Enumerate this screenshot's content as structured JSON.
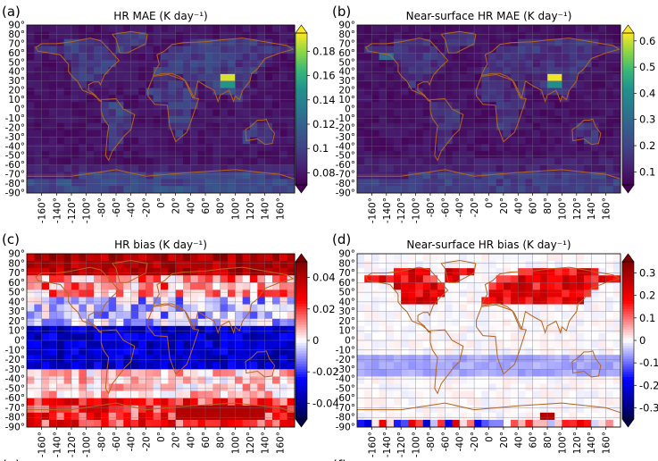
{
  "chart_data": [
    {
      "type": "heatmap",
      "panel_label": "(a)",
      "title": "HR MAE (K day⁻¹)",
      "colormap": "viridis",
      "colorbar_range": [
        0.07,
        0.195
      ],
      "colorbar_ticks": [
        0.08,
        0.1,
        0.12,
        0.14,
        0.16,
        0.18
      ],
      "colorbar_tick_labels": [
        "0.08",
        "0.1",
        "0.12",
        "0.14",
        "0.16",
        "0.18"
      ],
      "x_tick_labels": [
        "-160°",
        "-140°",
        "-120°",
        "-100°",
        "-80°",
        "-60°",
        "-40°",
        "-20°",
        "0°",
        "20°",
        "40°",
        "60°",
        "80°",
        "100°",
        "120°",
        "140°",
        "160°"
      ],
      "y_tick_labels": [
        "90°",
        "80°",
        "70°",
        "60°",
        "50°",
        "40°",
        "30°",
        "20°",
        "10°",
        "0°",
        "-10°",
        "-20°",
        "-30°",
        "-40°",
        "-50°",
        "-60°",
        "-70°",
        "-80°",
        "-90°"
      ],
      "xlim": [
        -180,
        180
      ],
      "ylim": [
        -90,
        90
      ],
      "hotspot": {
        "lon": 90,
        "lat": 32,
        "value": 0.19
      },
      "grid": true,
      "coastlines": true
    },
    {
      "type": "heatmap",
      "panel_label": "(b)",
      "title": "Near-surface HR MAE (K day⁻¹)",
      "colormap": "viridis",
      "colorbar_range": [
        0.05,
        0.63
      ],
      "colorbar_ticks": [
        0.1,
        0.2,
        0.3,
        0.4,
        0.5,
        0.6
      ],
      "colorbar_tick_labels": [
        "0.1",
        "0.2",
        "0.3",
        "0.4",
        "0.5",
        "0.6"
      ],
      "x_tick_labels": [
        "-160°",
        "-140°",
        "-120°",
        "-100°",
        "-80°",
        "-60°",
        "-40°",
        "-20°",
        "0°",
        "20°",
        "40°",
        "60°",
        "80°",
        "100°",
        "120°",
        "140°",
        "160°"
      ],
      "y_tick_labels": [
        "90°",
        "80°",
        "70°",
        "60°",
        "50°",
        "40°",
        "30°",
        "20°",
        "10°",
        "0°",
        "-10°",
        "-20°",
        "-30°",
        "-40°",
        "-50°",
        "-60°",
        "-70°",
        "-80°",
        "-90°"
      ],
      "xlim": [
        -180,
        180
      ],
      "ylim": [
        -90,
        90
      ],
      "hotspot": {
        "lon": 90,
        "lat": 32,
        "value": 0.62
      },
      "grid": true,
      "coastlines": true
    },
    {
      "type": "heatmap",
      "panel_label": "(c)",
      "title": "HR bias (K day⁻¹)",
      "colormap": "seismic",
      "colorbar_range": [
        -0.05,
        0.05
      ],
      "colorbar_ticks": [
        -0.04,
        -0.02,
        0,
        0.02,
        0.04
      ],
      "colorbar_tick_labels": [
        "-0.04",
        "-0.02",
        "0",
        "0.02",
        "0.04"
      ],
      "x_tick_labels": [
        "-160°",
        "-140°",
        "-120°",
        "-100°",
        "-80°",
        "-60°",
        "-40°",
        "-20°",
        "0°",
        "20°",
        "40°",
        "60°",
        "80°",
        "100°",
        "120°",
        "140°",
        "160°"
      ],
      "y_tick_labels": [
        "90°",
        "80°",
        "70°",
        "60°",
        "50°",
        "40°",
        "30°",
        "20°",
        "10°",
        "0°",
        "-10°",
        "-20°",
        "-30°",
        "-40°",
        "-50°",
        "-60°",
        "-70°",
        "-80°",
        "-90°"
      ],
      "xlim": [
        -180,
        180
      ],
      "ylim": [
        -90,
        90
      ],
      "grid": true,
      "coastlines": true
    },
    {
      "type": "heatmap",
      "panel_label": "(d)",
      "title": "Near-surface HR bias (K day⁻¹)",
      "colormap": "seismic",
      "colorbar_range": [
        -0.35,
        0.35
      ],
      "colorbar_ticks": [
        -0.3,
        -0.2,
        -0.1,
        0,
        0.1,
        0.2,
        0.3
      ],
      "colorbar_tick_labels": [
        "-0.3",
        "-0.2",
        "-0.1",
        "0",
        "0.1",
        "0.2",
        "0.3"
      ],
      "x_tick_labels": [
        "-160°",
        "-140°",
        "-120°",
        "-100°",
        "-80°",
        "-60°",
        "-40°",
        "-20°",
        "0°",
        "20°",
        "40°",
        "60°",
        "80°",
        "100°",
        "120°",
        "140°",
        "160°"
      ],
      "y_tick_labels": [
        "90°",
        "80°",
        "70°",
        "60°",
        "50°",
        "40°",
        "30°",
        "20°",
        "10°",
        "0°",
        "-10°",
        "-20°",
        "-30°",
        "-40°",
        "-50°",
        "-60°",
        "-70°",
        "-80°",
        "-90°"
      ],
      "xlim": [
        -180,
        180
      ],
      "ylim": [
        -90,
        90
      ],
      "grid": true,
      "coastlines": true
    }
  ],
  "cutoff_labels": [
    "(e)",
    "(f)"
  ],
  "colors": {
    "coastline": "#b5651d",
    "grid": "#6f6f7f",
    "background": "#ffffff"
  }
}
